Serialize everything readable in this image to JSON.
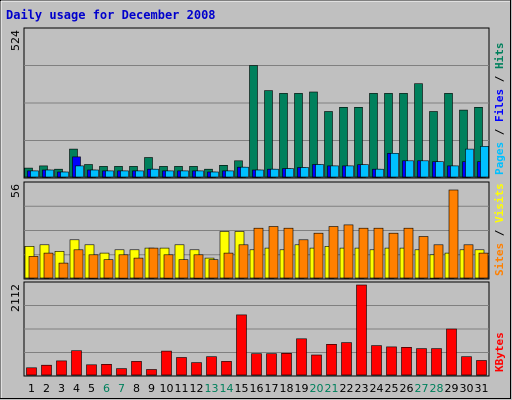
{
  "chart_data": {
    "type": "bar",
    "title": "Daily usage for December 2008",
    "days": [
      "1",
      "2",
      "3",
      "4",
      "5",
      "6",
      "7",
      "8",
      "9",
      "10",
      "11",
      "12",
      "13",
      "14",
      "15",
      "16",
      "17",
      "18",
      "19",
      "20",
      "21",
      "22",
      "23",
      "24",
      "25",
      "26",
      "27",
      "28",
      "29",
      "30",
      "31"
    ],
    "weekend_days": [
      "6",
      "7",
      "13",
      "14",
      "20",
      "21",
      "27",
      "28"
    ],
    "panels": [
      {
        "name": "hits-files-pages",
        "ymax_label": "524",
        "ymax": 524,
        "side_label": {
          "pages": "Pages",
          "sep1": " / ",
          "files": "Files",
          "sep2": " / ",
          "hits": "Hits"
        },
        "series": [
          {
            "name": "Hits",
            "color": "#00805C",
            "values": [
              32,
              40,
              28,
              100,
              45,
              38,
              38,
              38,
              70,
              38,
              38,
              38,
              28,
              42,
              58,
              400,
              310,
              300,
              300,
              305,
              235,
              250,
              250,
              300,
              300,
              300,
              335,
              235,
              300,
              240,
              250
            ]
          },
          {
            "name": "Files",
            "color": "#0000FF",
            "values": [
              22,
              25,
              18,
              72,
              25,
              22,
              22,
              22,
              28,
              22,
              22,
              22,
              18,
              22,
              35,
              25,
              28,
              30,
              34,
              45,
              40,
              40,
              44,
              28,
              85,
              58,
              58,
              55,
              40,
              55,
              55
            ]
          },
          {
            "name": "Pages",
            "color": "#00C0FF",
            "values": [
              22,
              25,
              18,
              40,
              25,
              22,
              22,
              22,
              28,
              22,
              22,
              22,
              18,
              22,
              35,
              25,
              28,
              30,
              34,
              45,
              40,
              40,
              44,
              28,
              85,
              58,
              58,
              55,
              40,
              100,
              110
            ]
          }
        ]
      },
      {
        "name": "visits-sites",
        "ymax_label": "56",
        "ymax": 56,
        "side_label": {
          "sites": "Sites",
          "sep": " / ",
          "visits": "Visits"
        },
        "series": [
          {
            "name": "Visits",
            "color": "#FFFF00",
            "values": [
              19,
              20,
              16,
              23,
              20,
              15,
              17,
              17,
              18,
              18,
              20,
              17,
              12,
              28,
              28,
              17,
              18,
              17,
              20,
              18,
              19,
              18,
              18,
              17,
              18,
              18,
              17,
              14,
              15,
              17,
              17
            ]
          },
          {
            "name": "Sites",
            "color": "#FF8000",
            "values": [
              13,
              15,
              9,
              17,
              14,
              11,
              14,
              12,
              18,
              14,
              11,
              14,
              11,
              15,
              20,
              30,
              31,
              30,
              23,
              27,
              31,
              32,
              30,
              30,
              27,
              30,
              25,
              20,
              53,
              20,
              15
            ]
          }
        ]
      },
      {
        "name": "kbytes",
        "ymax_label": "2112",
        "ymax": 2112,
        "side_label": {
          "kbytes": "KBytes"
        },
        "series": [
          {
            "name": "KBytes",
            "color": "#FF0000",
            "values": [
              170,
              230,
              330,
              570,
              240,
              250,
              150,
              320,
              130,
              560,
              410,
              290,
              430,
              320,
              1410,
              500,
              500,
              510,
              850,
              470,
              720,
              760,
              2112,
              690,
              660,
              650,
              620,
              620,
              1080,
              430,
              340
            ]
          }
        ]
      }
    ]
  }
}
